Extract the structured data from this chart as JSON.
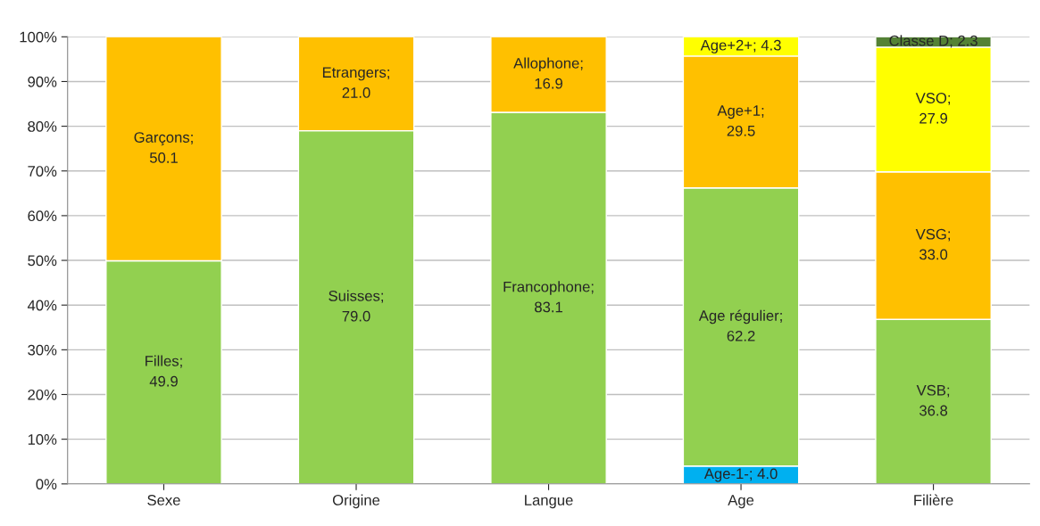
{
  "chart_data": {
    "type": "bar",
    "stacked": true,
    "categories": [
      "Sexe",
      "Origine",
      "Langue",
      "Age",
      "Filière"
    ],
    "series": [
      {
        "color": "#00b0f0",
        "values": [
          null,
          null,
          null,
          4.0,
          null
        ],
        "value_labels": [
          null,
          null,
          null,
          "Age-1-; 4.0",
          null
        ]
      },
      {
        "color": "#92d050",
        "values": [
          49.9,
          79.0,
          83.1,
          62.2,
          36.8
        ],
        "value_labels": [
          "Filles;\n49.9",
          "Suisses;\n79.0",
          "Francophone;\n83.1",
          "Age régulier;\n62.2",
          "VSB;\n36.8"
        ]
      },
      {
        "color": "#ffc000",
        "values": [
          50.1,
          21.0,
          16.9,
          29.5,
          33.0
        ],
        "value_labels": [
          "Garçons;\n50.1",
          "Etrangers;\n21.0",
          "Allophone;\n16.9",
          "Age+1;\n29.5",
          "VSG;\n33.0"
        ]
      },
      {
        "color": "#ffff00",
        "values": [
          null,
          null,
          null,
          4.3,
          27.9
        ],
        "value_labels": [
          null,
          null,
          null,
          "Age+2+; 4.3",
          "VSO;\n27.9"
        ]
      },
      {
        "color": "#548235",
        "values": [
          null,
          null,
          null,
          null,
          2.3
        ],
        "value_labels": [
          null,
          null,
          null,
          null,
          "Classe D; 2.3"
        ]
      }
    ],
    "ylim": [
      0,
      100
    ],
    "yticks": [
      {
        "value": 0,
        "label": "0%"
      },
      {
        "value": 10,
        "label": "10%"
      },
      {
        "value": 20,
        "label": "20%"
      },
      {
        "value": 30,
        "label": "30%"
      },
      {
        "value": 40,
        "label": "40%"
      },
      {
        "value": 50,
        "label": "50%"
      },
      {
        "value": 60,
        "label": "60%"
      },
      {
        "value": 70,
        "label": "70%"
      },
      {
        "value": 80,
        "label": "80%"
      },
      {
        "value": 90,
        "label": "90%"
      },
      {
        "value": 100,
        "label": "100%"
      }
    ],
    "grid": "y",
    "legend": false
  }
}
